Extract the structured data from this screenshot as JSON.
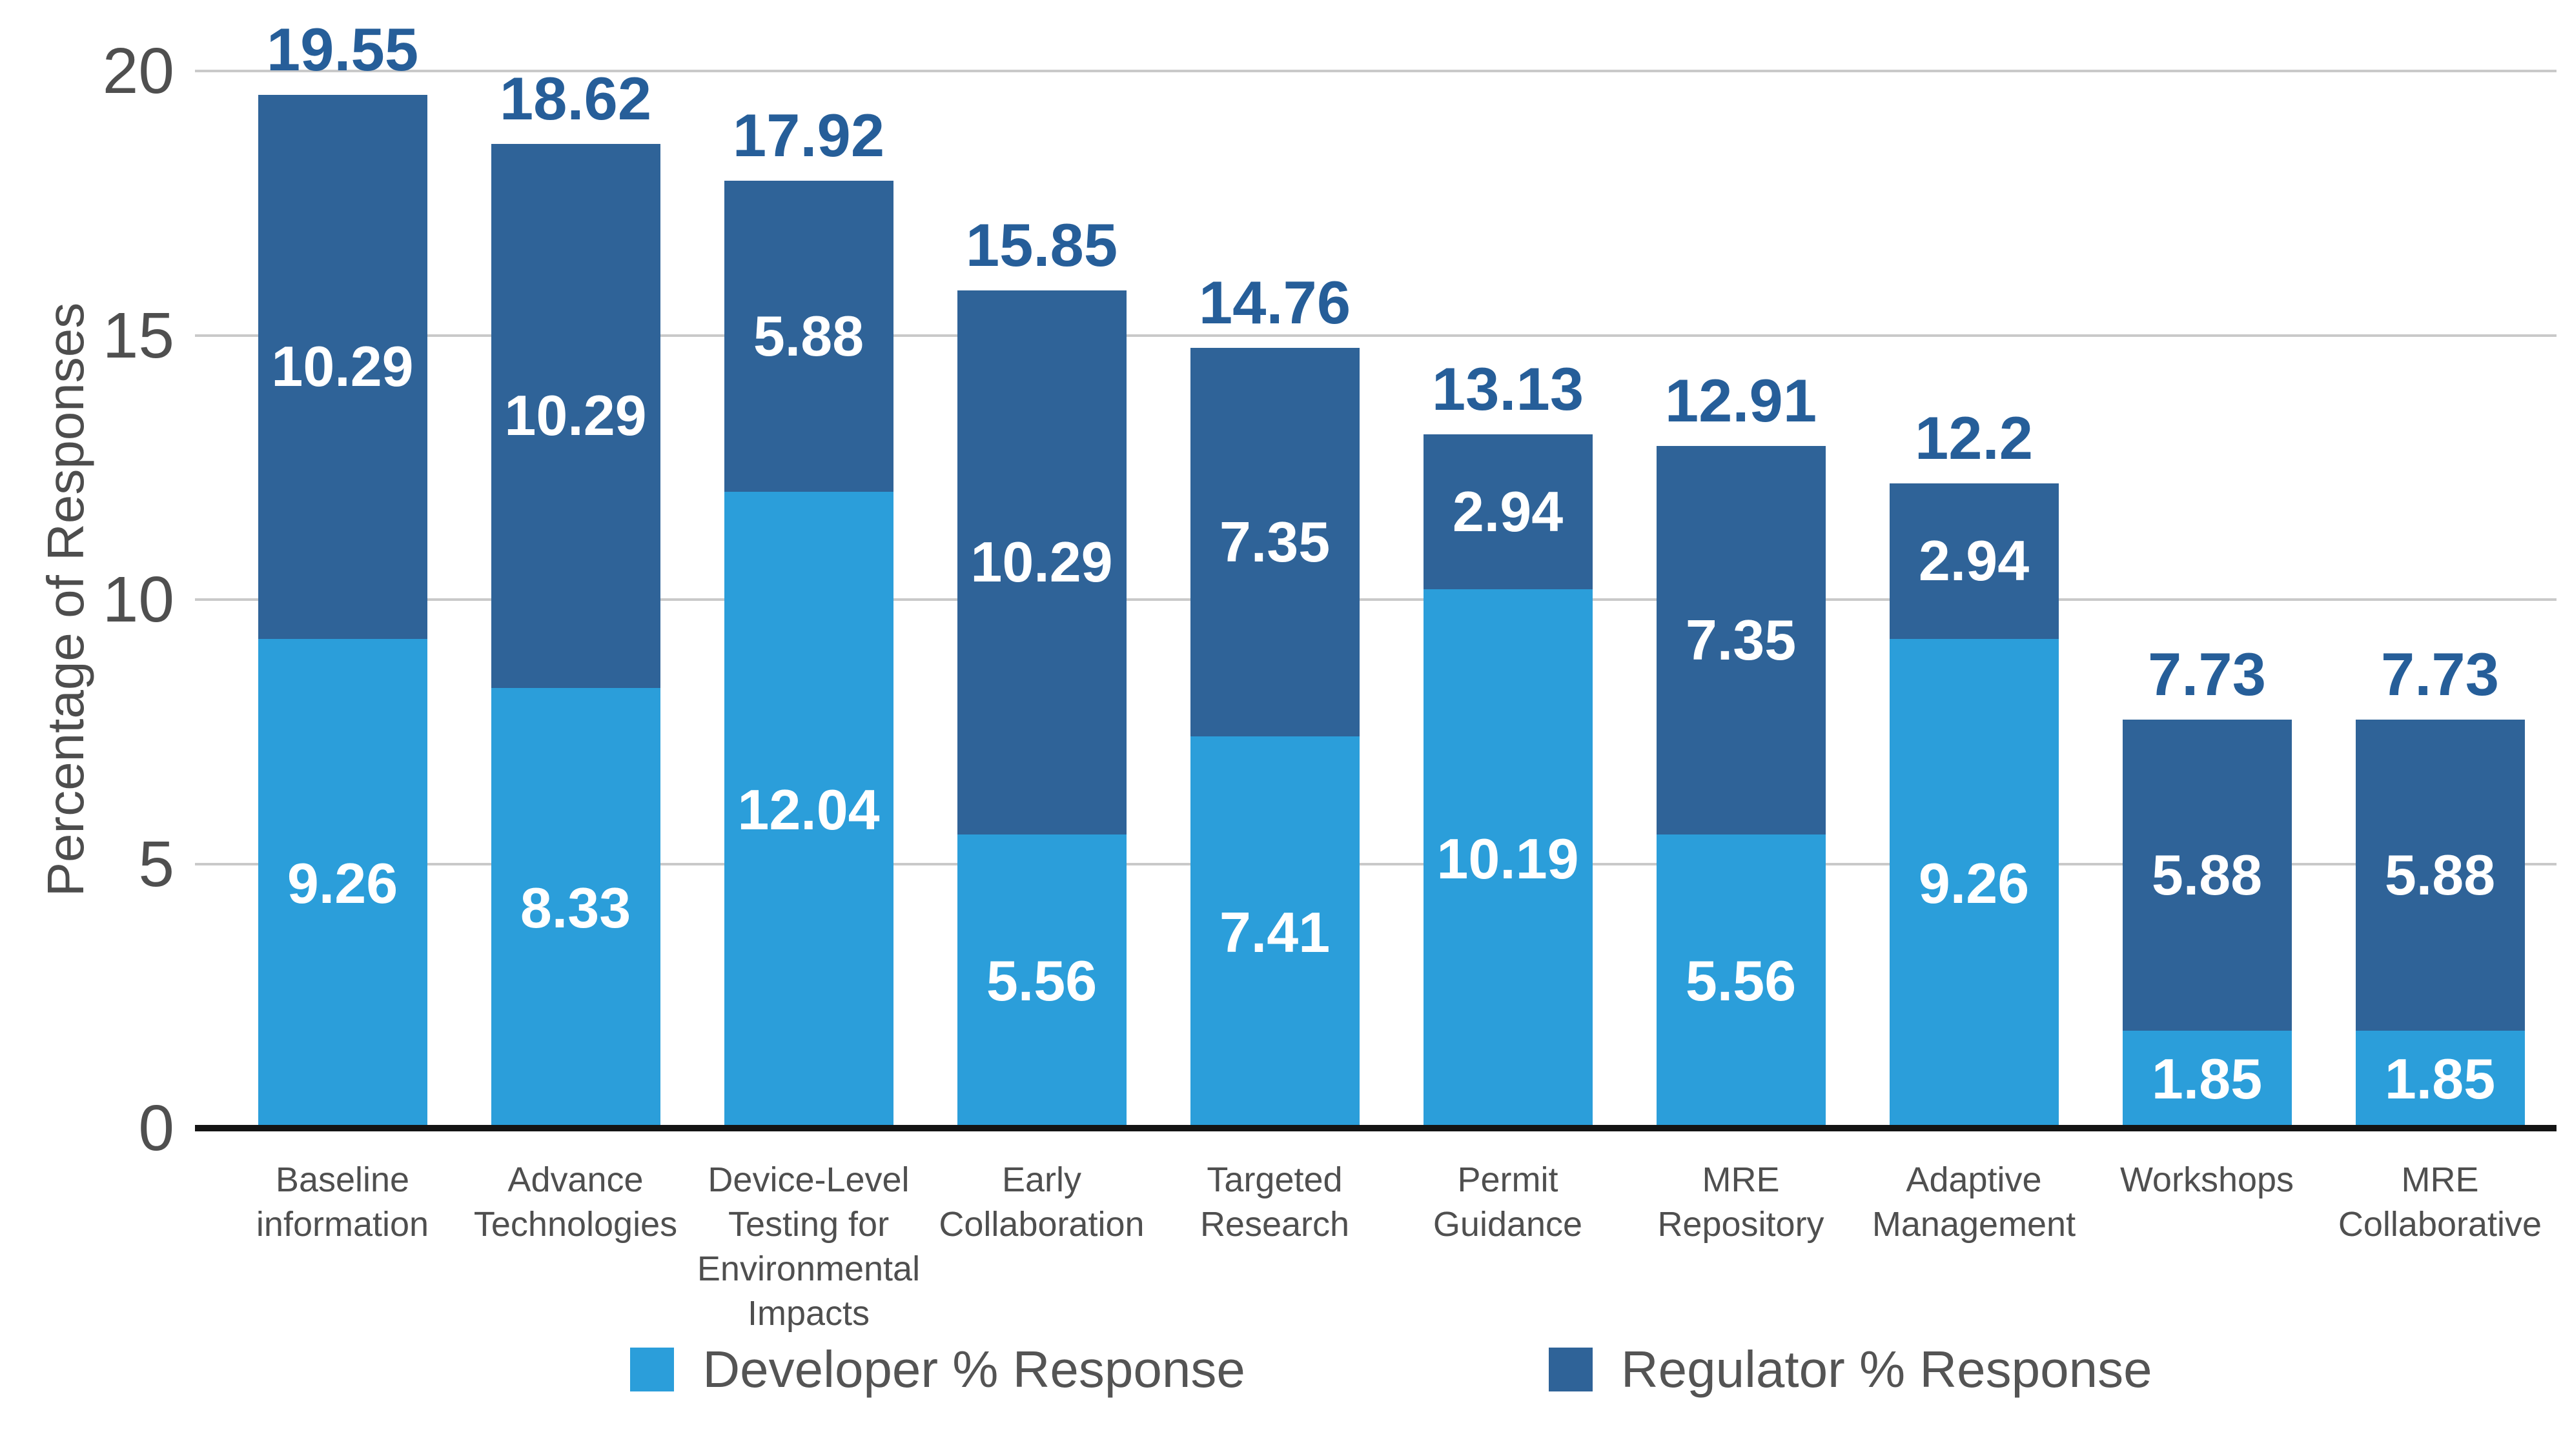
{
  "chart_data": {
    "type": "bar",
    "stacked": true,
    "title": "",
    "xlabel": "",
    "ylabel": "Percentage of Responses",
    "ylim": [
      0,
      20
    ],
    "yticks": [
      0,
      5,
      10,
      15,
      20
    ],
    "grid": true,
    "legend_position": "bottom",
    "categories": [
      "Baseline\ninformation",
      "Advance\nTechnologies",
      "Device-Level\nTesting for\nEnvironmental\nImpacts",
      "Early\nCollaboration",
      "Targeted\nResearch",
      "Permit\nGuidance",
      "MRE\nRepository",
      "Adaptive\nManagement",
      "Workshops",
      "MRE\nCollaborative"
    ],
    "series": [
      {
        "name": "Developer % Response",
        "color": "#2b9eda",
        "values": [
          9.26,
          8.33,
          12.04,
          5.56,
          7.41,
          10.19,
          5.56,
          9.26,
          1.85,
          1.85
        ]
      },
      {
        "name": "Regulator % Response",
        "color": "#2f6398",
        "values": [
          10.29,
          10.29,
          5.88,
          10.29,
          7.35,
          2.94,
          7.35,
          2.94,
          5.88,
          5.88
        ]
      }
    ],
    "totals": [
      "19.55",
      "18.62",
      "17.92",
      "15.85",
      "14.76",
      "13.13",
      "12.91",
      "12.2",
      "7.73",
      "7.73"
    ]
  },
  "colors": {
    "grid": "#c9c9c9",
    "axis": "#141414",
    "total_label": "#265e99",
    "value_label": "#ffffff",
    "tick_label": "#4f4f4f",
    "category_label": "#4f4f4f",
    "legend_label": "#545454"
  }
}
